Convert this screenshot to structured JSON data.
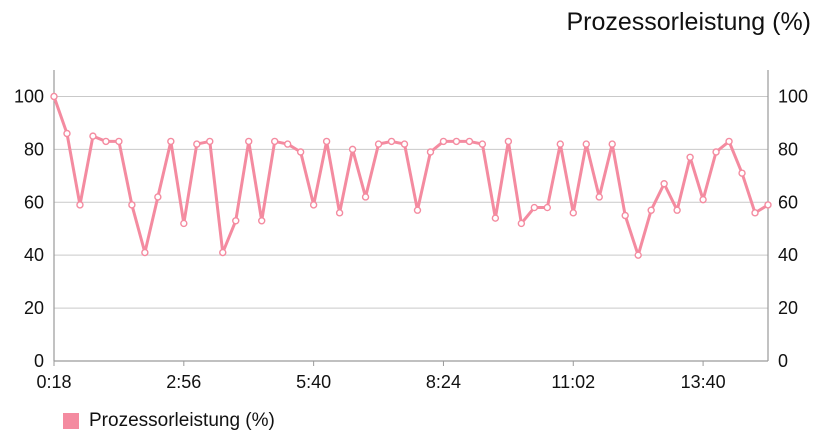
{
  "chart_data": {
    "type": "line",
    "title": "Prozessorleistung (%)",
    "ylim": [
      0,
      110
    ],
    "y_ticks": [
      0,
      20,
      40,
      60,
      80,
      100
    ],
    "x_ticks": [
      {
        "label": "0:18",
        "index": 0
      },
      {
        "label": "2:56",
        "index": 10
      },
      {
        "label": "5:40",
        "index": 20
      },
      {
        "label": "8:24",
        "index": 30
      },
      {
        "label": "11:02",
        "index": 40
      },
      {
        "label": "13:40",
        "index": 50
      }
    ],
    "grid": true,
    "legend_position": "bottom-left",
    "series": [
      {
        "name": "Prozessorleistung (%)",
        "color": "#f48ba0",
        "values": [
          100,
          86,
          59,
          85,
          83,
          83,
          59,
          41,
          62,
          83,
          52,
          82,
          83,
          41,
          53,
          83,
          53,
          83,
          82,
          79,
          59,
          83,
          56,
          80,
          62,
          82,
          83,
          82,
          57,
          79,
          83,
          83,
          83,
          82,
          54,
          83,
          52,
          58,
          58,
          82,
          56,
          82,
          62,
          82,
          55,
          40,
          57,
          67,
          57,
          77,
          61,
          79,
          83,
          71,
          56,
          59
        ]
      }
    ]
  }
}
